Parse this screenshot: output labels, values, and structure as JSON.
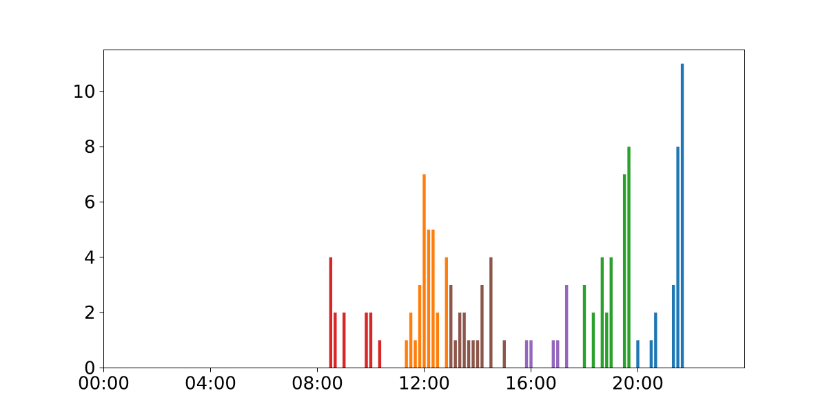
{
  "chart_data": {
    "type": "bar",
    "title": "",
    "xlabel": "",
    "ylabel": "",
    "x_unit": "hour of day",
    "xlim": [
      0,
      24
    ],
    "ylim": [
      0,
      11.5
    ],
    "grid": false,
    "legend": "none",
    "x_ticks": [
      {
        "value": 0,
        "label": "00:00"
      },
      {
        "value": 4,
        "label": "04:00"
      },
      {
        "value": 8,
        "label": "08:00"
      },
      {
        "value": 12,
        "label": "12:00"
      },
      {
        "value": 16,
        "label": "16:00"
      },
      {
        "value": 20,
        "label": "20:00"
      }
    ],
    "y_ticks": [
      {
        "value": 0,
        "label": "0"
      },
      {
        "value": 2,
        "label": "2"
      },
      {
        "value": 4,
        "label": "4"
      },
      {
        "value": 6,
        "label": "6"
      },
      {
        "value": 8,
        "label": "8"
      },
      {
        "value": 10,
        "label": "10"
      }
    ],
    "series": [
      {
        "color": "#d62728",
        "x": [
          "08:30",
          "08:40",
          "09:00",
          "09:50",
          "10:00",
          "10:20"
        ],
        "values": [
          4,
          2,
          2,
          2,
          2,
          1
        ]
      },
      {
        "color": "#ff7f0e",
        "x": [
          "11:20",
          "11:30",
          "11:40",
          "11:50",
          "12:00",
          "12:10",
          "12:20",
          "12:30",
          "12:50"
        ],
        "values": [
          1,
          2,
          1,
          3,
          7,
          5,
          5,
          2,
          4
        ]
      },
      {
        "color": "#8c564b",
        "x": [
          "13:00",
          "13:10",
          "13:20",
          "13:30",
          "13:40",
          "13:50",
          "14:00",
          "14:10",
          "14:30",
          "15:00"
        ],
        "values": [
          3,
          1,
          2,
          2,
          1,
          1,
          1,
          3,
          4,
          1
        ]
      },
      {
        "color": "#9467bd",
        "x": [
          "15:50",
          "16:00",
          "16:50",
          "17:00",
          "17:20"
        ],
        "values": [
          1,
          1,
          1,
          1,
          3
        ]
      },
      {
        "color": "#2ca02c",
        "x": [
          "18:00",
          "18:20",
          "18:40",
          "18:50",
          "19:00",
          "19:30",
          "19:40"
        ],
        "values": [
          3,
          2,
          4,
          2,
          4,
          7,
          8
        ]
      },
      {
        "color": "#1f77b4",
        "x": [
          "20:00",
          "20:30",
          "20:40",
          "21:20",
          "21:30",
          "21:40"
        ],
        "values": [
          1,
          1,
          2,
          3,
          8,
          11
        ]
      }
    ]
  }
}
